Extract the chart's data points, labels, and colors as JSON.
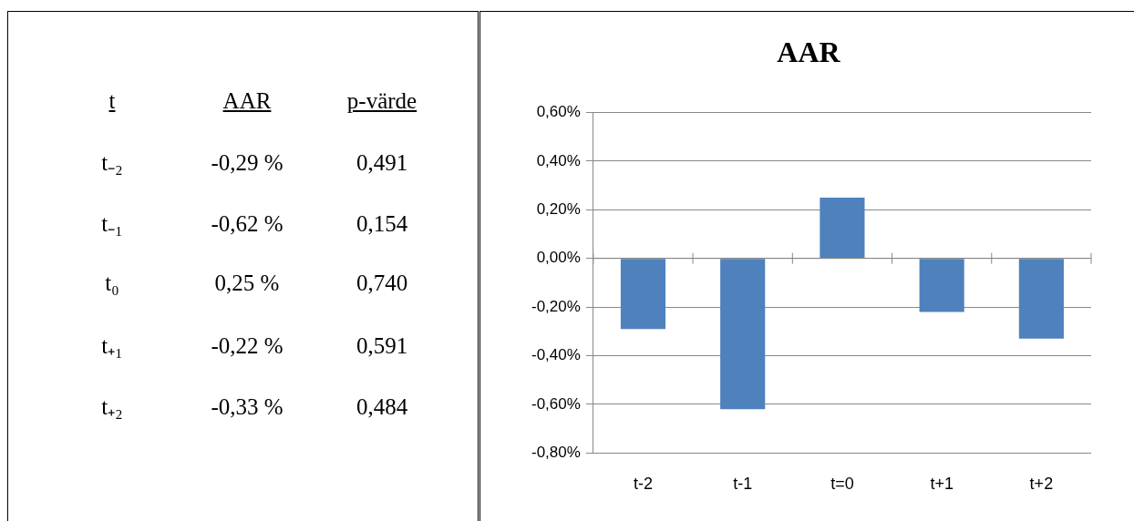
{
  "chart_data": [
    {
      "type": "other",
      "categories": [
        "t",
        "AAR",
        "p-värde"
      ],
      "annotations": [
        "t₋₂",
        "-0,29 %",
        "0,491",
        "t₋₁",
        "-0,62 %",
        "0,154",
        "t₀",
        "0,25 %",
        "0,740",
        "t₊₁",
        "-0,22 %",
        "0,591",
        "t₊₂",
        "-0,33 %",
        "0,484"
      ]
    },
    {
      "type": "bar",
      "title": "AAR",
      "categories": [
        "t-2",
        "t-1",
        "t=0",
        "t+1",
        "t+2"
      ],
      "values": [
        -0.29,
        -0.62,
        0.25,
        -0.22,
        -0.33
      ],
      "color": "#4f81bd",
      "ylim": [
        -0.8,
        0.6
      ],
      "yticks": [
        {
          "value": -0.8,
          "label": "-0,80%"
        },
        {
          "value": -0.6,
          "label": "-0,60%"
        },
        {
          "value": -0.4,
          "label": "-0,40%"
        },
        {
          "value": -0.2,
          "label": "-0,20%"
        },
        {
          "value": 0,
          "label": "0,00%"
        },
        {
          "value": 0.2,
          "label": "0,20%"
        },
        {
          "value": 0.4,
          "label": "0,40%"
        },
        {
          "value": 0.6,
          "label": "0,60%"
        }
      ],
      "grid": "y"
    }
  ]
}
